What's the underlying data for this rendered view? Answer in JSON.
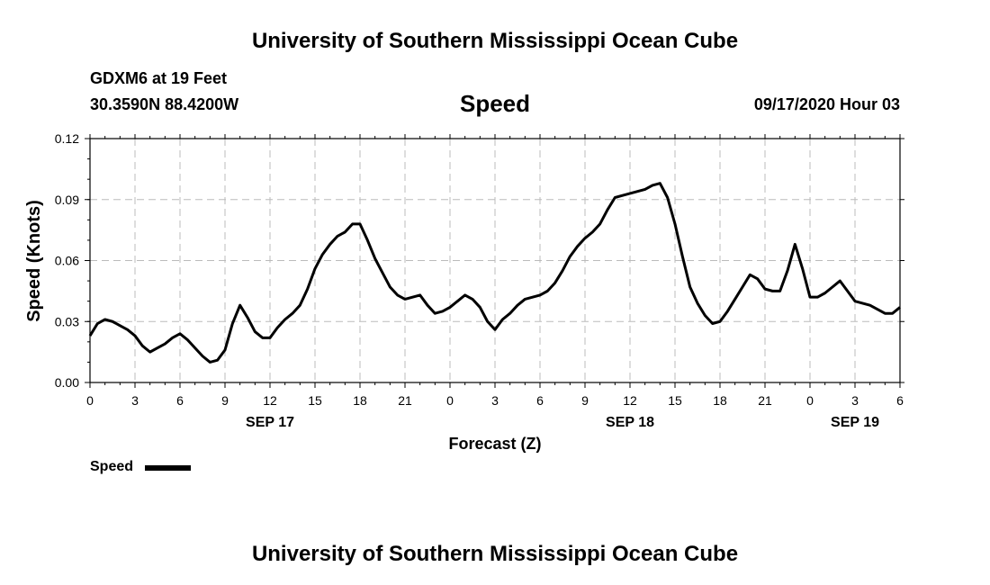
{
  "header": {
    "title": "University of Southern Mississippi Ocean Cube",
    "station": "GDXM6 at 19 Feet",
    "location": "30.3590N 88.4200W",
    "variable": "Speed",
    "timestamp": "09/17/2020 Hour 03"
  },
  "footer": {
    "title": "University of Southern Mississippi Ocean Cube"
  },
  "legend": {
    "label": "Speed"
  },
  "colors": {
    "line": "#000000",
    "grid": "#bbbbbb",
    "axis": "#000000"
  },
  "chart_data": {
    "type": "line",
    "title": "Speed",
    "xlabel": "Forecast (Z)",
    "ylabel": "Speed (Knots)",
    "ylim": [
      0,
      0.12
    ],
    "xlim": [
      0,
      54
    ],
    "grid": true,
    "yticks": [
      "0.00",
      "0.03",
      "0.06",
      "0.09",
      "0.12"
    ],
    "xticks": [
      {
        "x": 0,
        "label": "0"
      },
      {
        "x": 3,
        "label": "3"
      },
      {
        "x": 6,
        "label": "6"
      },
      {
        "x": 9,
        "label": "9"
      },
      {
        "x": 12,
        "label": "12"
      },
      {
        "x": 15,
        "label": "15"
      },
      {
        "x": 18,
        "label": "18"
      },
      {
        "x": 21,
        "label": "21"
      },
      {
        "x": 24,
        "label": "0"
      },
      {
        "x": 27,
        "label": "3"
      },
      {
        "x": 30,
        "label": "6"
      },
      {
        "x": 33,
        "label": "9"
      },
      {
        "x": 36,
        "label": "12"
      },
      {
        "x": 39,
        "label": "15"
      },
      {
        "x": 42,
        "label": "18"
      },
      {
        "x": 45,
        "label": "21"
      },
      {
        "x": 48,
        "label": "0"
      },
      {
        "x": 51,
        "label": "3"
      },
      {
        "x": 54,
        "label": "6"
      }
    ],
    "date_labels": [
      {
        "x": 12,
        "label": "SEP 17"
      },
      {
        "x": 36,
        "label": "SEP 18"
      },
      {
        "x": 51,
        "label": "SEP 19"
      }
    ],
    "series": [
      {
        "name": "Speed",
        "x": [
          0,
          0.5,
          1,
          1.5,
          2,
          2.5,
          3,
          3.5,
          4,
          4.5,
          5,
          5.5,
          6,
          6.5,
          7,
          7.5,
          8,
          8.5,
          9,
          9.5,
          10,
          10.5,
          11,
          11.5,
          12,
          12.5,
          13,
          13.5,
          14,
          14.5,
          15,
          15.5,
          16,
          16.5,
          17,
          17.5,
          18,
          18.5,
          19,
          19.5,
          20,
          20.5,
          21,
          21.5,
          22,
          22.5,
          23,
          23.5,
          24,
          24.5,
          25,
          25.5,
          26,
          26.5,
          27,
          27.5,
          28,
          28.5,
          29,
          29.5,
          30,
          30.5,
          31,
          31.5,
          32,
          32.5,
          33,
          33.5,
          34,
          34.5,
          35,
          35.5,
          36,
          36.5,
          37,
          37.5,
          38,
          38.5,
          39,
          39.5,
          40,
          40.5,
          41,
          41.5,
          42,
          42.5,
          43,
          43.5,
          44,
          44.5,
          45,
          45.5,
          46,
          46.5,
          47,
          47.5,
          48,
          48.5,
          49,
          49.5,
          50,
          50.5,
          51,
          51.5,
          52,
          52.5,
          53,
          53.5,
          54
        ],
        "values": [
          0.023,
          0.029,
          0.031,
          0.03,
          0.028,
          0.026,
          0.023,
          0.018,
          0.015,
          0.017,
          0.019,
          0.022,
          0.024,
          0.021,
          0.017,
          0.013,
          0.01,
          0.011,
          0.016,
          0.029,
          0.038,
          0.032,
          0.025,
          0.022,
          0.022,
          0.027,
          0.031,
          0.034,
          0.038,
          0.046,
          0.056,
          0.063,
          0.068,
          0.072,
          0.074,
          0.078,
          0.078,
          0.07,
          0.061,
          0.054,
          0.047,
          0.043,
          0.041,
          0.042,
          0.043,
          0.038,
          0.034,
          0.035,
          0.037,
          0.04,
          0.043,
          0.041,
          0.037,
          0.03,
          0.026,
          0.031,
          0.034,
          0.038,
          0.041,
          0.042,
          0.043,
          0.045,
          0.049,
          0.055,
          0.062,
          0.067,
          0.071,
          0.074,
          0.078,
          0.085,
          0.091,
          0.092,
          0.093,
          0.094,
          0.095,
          0.097,
          0.098,
          0.091,
          0.078,
          0.062,
          0.047,
          0.039,
          0.033,
          0.029,
          0.03,
          0.035,
          0.041,
          0.047,
          0.053,
          0.051,
          0.046,
          0.045,
          0.045,
          0.055,
          0.068,
          0.056,
          0.042,
          0.042,
          0.044,
          0.047,
          0.05,
          0.045,
          0.04,
          0.039,
          0.038,
          0.036,
          0.034,
          0.034,
          0.037
        ]
      }
    ]
  }
}
